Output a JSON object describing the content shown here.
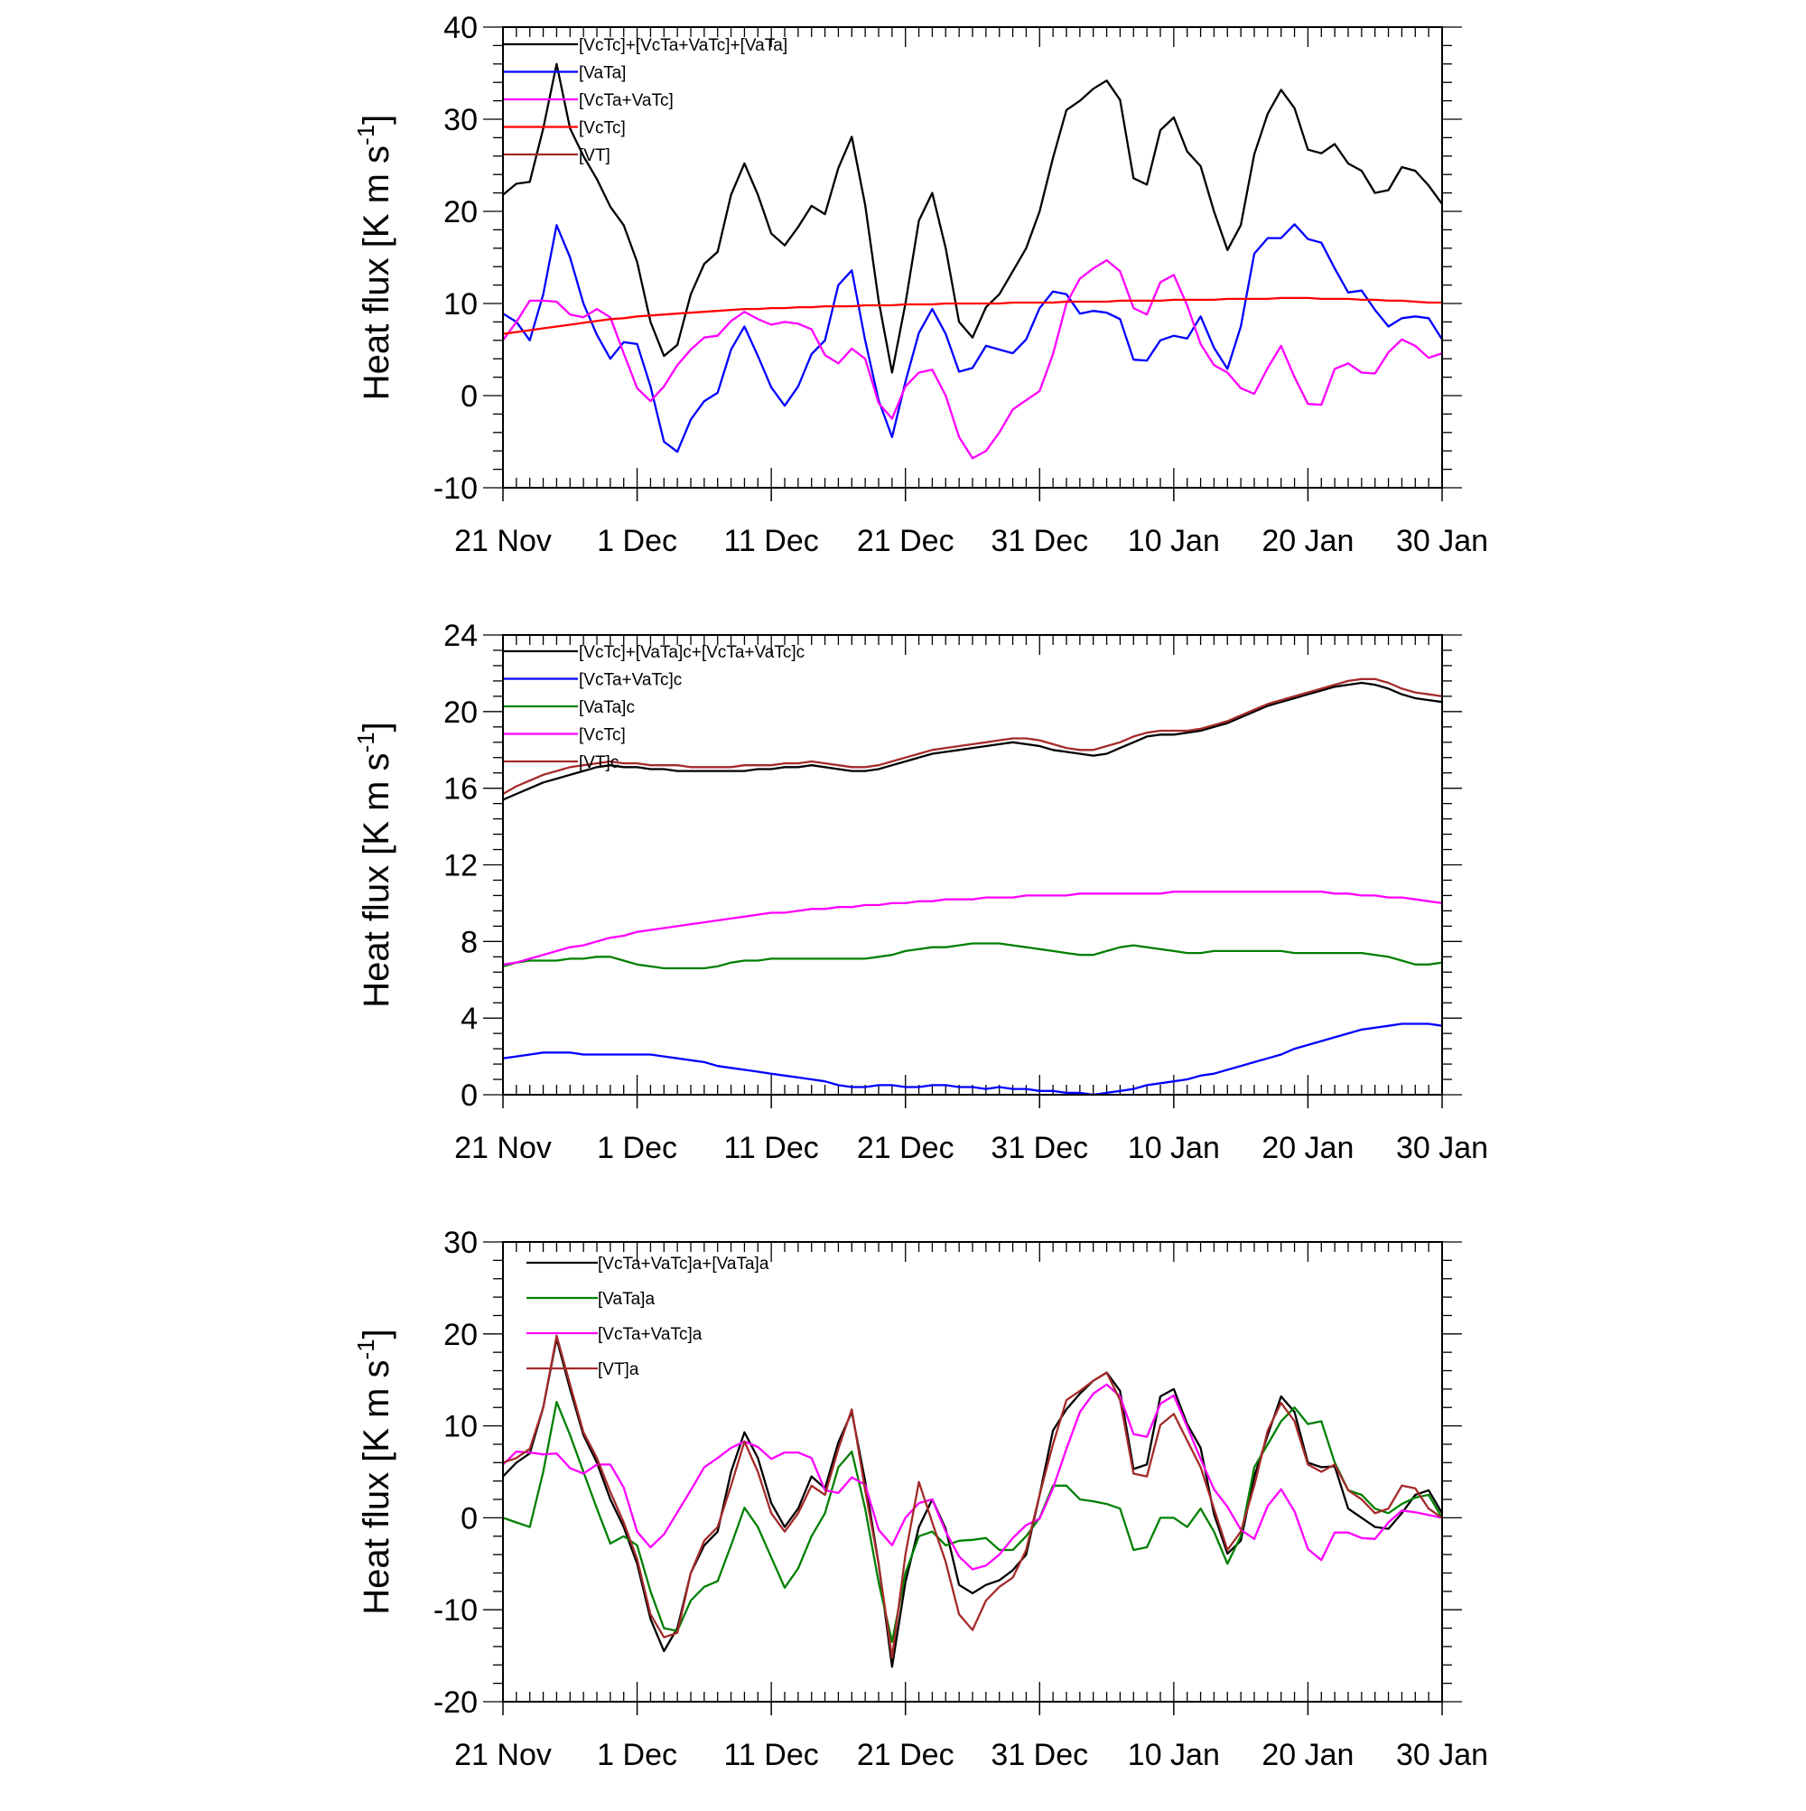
{
  "x_tick_labels": [
    "21 Nov",
    "1 Dec",
    "11 Dec",
    "21 Dec",
    "31 Dec",
    "10 Jan",
    "20 Jan",
    "30 Jan"
  ],
  "chart_data": [
    {
      "type": "line",
      "ylabel": "Heat flux [K m s⁻¹]",
      "ylabel_base": "Heat flux [K m s",
      "ylabel_sup": "-1",
      "ylabel_tail": "]",
      "ylim": [
        -10,
        40
      ],
      "yticks": [
        -10,
        0,
        10,
        20,
        30,
        40
      ],
      "xlim": [
        0,
        70
      ],
      "x_ticks": [
        0,
        10,
        20,
        30,
        40,
        50,
        60,
        70
      ],
      "legend_placement": "top-left",
      "series": [
        {
          "name": "[VcTc]+[VcTa+VaTc]+[VaTa]",
          "color": "#000000",
          "values": [
            21.8,
            23,
            23.2,
            29,
            36,
            29,
            26,
            23.5,
            20.5,
            18.5,
            14.5,
            8,
            4.3,
            5.5,
            11,
            14.3,
            15.6,
            21.8,
            25.2,
            21.8,
            17.6,
            16.3,
            18.3,
            20.6,
            19.7,
            24.7,
            28.1,
            20.7,
            10.3,
            2.5,
            10,
            19,
            22,
            16,
            8,
            6.3,
            9.6,
            11,
            13.5,
            16,
            20,
            25.8,
            31,
            32,
            33.3,
            34.2,
            32.1,
            23.6,
            22.9,
            28.8,
            30.2,
            26.5,
            24.9,
            20,
            15.8,
            18.5,
            26.2,
            30.6,
            33.2,
            31.2,
            26.7,
            26.3,
            27.3,
            25.2,
            24.4,
            22,
            22.3,
            24.8,
            24.4,
            22.8,
            20.8
          ]
        },
        {
          "name": "[VaTa]",
          "color": "#0000ff",
          "values": [
            8.9,
            8,
            6,
            11,
            18.5,
            15,
            10,
            6.6,
            4,
            5.8,
            5.6,
            1,
            -5,
            -6.1,
            -2.6,
            -0.6,
            0.3,
            5,
            7.5,
            4.3,
            0.9,
            -1.1,
            1,
            4.5,
            6,
            12,
            13.6,
            6,
            -0.5,
            -4.5,
            1.5,
            6.8,
            9.4,
            6.7,
            2.6,
            3,
            5.4,
            5,
            4.6,
            6.1,
            9.5,
            11.3,
            11,
            8.9,
            9.2,
            9,
            8.3,
            3.9,
            3.8,
            6,
            6.5,
            6.2,
            8.6,
            5.2,
            2.9,
            7.5,
            15.4,
            17.1,
            17.1,
            18.6,
            17,
            16.6,
            13.8,
            11.2,
            11.4,
            9.3,
            7.5,
            8.4,
            8.6,
            8.4,
            6.1
          ]
        },
        {
          "name": "[VcTa+VaTc]",
          "color": "#ff00ff",
          "values": [
            6,
            8,
            10.3,
            10.3,
            10.2,
            8.8,
            8.5,
            9.4,
            8.5,
            4.6,
            0.8,
            -0.6,
            1,
            3.3,
            5,
            6.3,
            6.5,
            8.1,
            9.1,
            8.3,
            7.7,
            8,
            7.8,
            7.2,
            4.4,
            3.5,
            5.1,
            4,
            -0.8,
            -2.5,
            1,
            2.5,
            2.8,
            0,
            -4.5,
            -6.8,
            -6,
            -4,
            -1.5,
            -0.5,
            0.5,
            4.5,
            10,
            12.7,
            13.8,
            14.7,
            13.5,
            9.5,
            8.8,
            12.3,
            13.1,
            9.8,
            5.6,
            3.3,
            2.5,
            0.8,
            0.2,
            3,
            5.4,
            2,
            -0.9,
            -1,
            2.9,
            3.5,
            2.5,
            2.4,
            4.7,
            6.1,
            5.4,
            4.1,
            4.6
          ]
        },
        {
          "name": "[VcTc]",
          "color": "#ff0000",
          "values": [
            6.7,
            6.9,
            7.1,
            7.3,
            7.5,
            7.7,
            7.9,
            8.1,
            8.3,
            8.4,
            8.6,
            8.7,
            8.8,
            8.9,
            9,
            9.1,
            9.2,
            9.3,
            9.4,
            9.4,
            9.5,
            9.5,
            9.6,
            9.6,
            9.7,
            9.7,
            9.7,
            9.8,
            9.8,
            9.8,
            9.9,
            9.9,
            9.9,
            10,
            10,
            10,
            10,
            10,
            10.1,
            10.1,
            10.1,
            10.1,
            10.2,
            10.2,
            10.2,
            10.2,
            10.3,
            10.3,
            10.3,
            10.3,
            10.4,
            10.4,
            10.4,
            10.4,
            10.5,
            10.5,
            10.5,
            10.5,
            10.6,
            10.6,
            10.6,
            10.5,
            10.5,
            10.5,
            10.4,
            10.4,
            10.3,
            10.3,
            10.2,
            10.1,
            10.1
          ]
        },
        {
          "name": "[VT]",
          "color": "#a52a2a",
          "values": []
        }
      ]
    },
    {
      "type": "line",
      "ylabel": "Heat flux [K m s⁻¹]",
      "ylabel_base": "Heat flux [K m s",
      "ylabel_sup": "-1",
      "ylabel_tail": "]",
      "ylim": [
        0,
        24
      ],
      "yticks": [
        0,
        4,
        8,
        12,
        16,
        20,
        24
      ],
      "xlim": [
        0,
        70
      ],
      "x_ticks": [
        0,
        10,
        20,
        30,
        40,
        50,
        60,
        70
      ],
      "legend_placement": "top-left",
      "series": [
        {
          "name": "[VcTc]+[VaTa]c+[VcTa+VaTc]c",
          "color": "#000000",
          "values": [
            15.4,
            15.7,
            16,
            16.3,
            16.5,
            16.7,
            16.9,
            17.1,
            17.2,
            17.1,
            17.1,
            17,
            17,
            16.9,
            16.9,
            16.9,
            16.9,
            16.9,
            16.9,
            17,
            17,
            17.1,
            17.1,
            17.2,
            17.1,
            17,
            16.9,
            16.9,
            17,
            17.2,
            17.4,
            17.6,
            17.8,
            17.9,
            18,
            18.1,
            18.2,
            18.3,
            18.4,
            18.3,
            18.2,
            18,
            17.9,
            17.8,
            17.7,
            17.8,
            18.1,
            18.4,
            18.7,
            18.8,
            18.8,
            18.9,
            19,
            19.2,
            19.4,
            19.7,
            20,
            20.3,
            20.5,
            20.7,
            20.9,
            21.1,
            21.3,
            21.4,
            21.5,
            21.4,
            21.2,
            20.9,
            20.7,
            20.6,
            20.5
          ]
        },
        {
          "name": "[VcTa+VaTc]c",
          "color": "#0000ff",
          "values": [
            1.9,
            2,
            2.1,
            2.2,
            2.2,
            2.2,
            2.1,
            2.1,
            2.1,
            2.1,
            2.1,
            2.1,
            2,
            1.9,
            1.8,
            1.7,
            1.5,
            1.4,
            1.3,
            1.2,
            1.1,
            1,
            0.9,
            0.8,
            0.7,
            0.5,
            0.4,
            0.4,
            0.5,
            0.5,
            0.4,
            0.4,
            0.5,
            0.5,
            0.4,
            0.4,
            0.3,
            0.4,
            0.3,
            0.3,
            0.2,
            0.2,
            0.1,
            0.1,
            0,
            0.1,
            0.2,
            0.3,
            0.5,
            0.6,
            0.7,
            0.8,
            1,
            1.1,
            1.3,
            1.5,
            1.7,
            1.9,
            2.1,
            2.4,
            2.6,
            2.8,
            3,
            3.2,
            3.4,
            3.5,
            3.6,
            3.7,
            3.7,
            3.7,
            3.6
          ]
        },
        {
          "name": "[VaTa]c",
          "color": "#008000",
          "values": [
            6.7,
            6.9,
            7,
            7,
            7,
            7.1,
            7.1,
            7.2,
            7.2,
            7,
            6.8,
            6.7,
            6.6,
            6.6,
            6.6,
            6.6,
            6.7,
            6.9,
            7,
            7,
            7.1,
            7.1,
            7.1,
            7.1,
            7.1,
            7.1,
            7.1,
            7.1,
            7.2,
            7.3,
            7.5,
            7.6,
            7.7,
            7.7,
            7.8,
            7.9,
            7.9,
            7.9,
            7.8,
            7.7,
            7.6,
            7.5,
            7.4,
            7.3,
            7.3,
            7.5,
            7.7,
            7.8,
            7.7,
            7.6,
            7.5,
            7.4,
            7.4,
            7.5,
            7.5,
            7.5,
            7.5,
            7.5,
            7.5,
            7.4,
            7.4,
            7.4,
            7.4,
            7.4,
            7.4,
            7.3,
            7.2,
            7,
            6.8,
            6.8,
            6.9
          ]
        },
        {
          "name": "[VcTc]",
          "color": "#ff00ff",
          "values": [
            6.8,
            6.9,
            7.1,
            7.3,
            7.5,
            7.7,
            7.8,
            8,
            8.2,
            8.3,
            8.5,
            8.6,
            8.7,
            8.8,
            8.9,
            9,
            9.1,
            9.2,
            9.3,
            9.4,
            9.5,
            9.5,
            9.6,
            9.7,
            9.7,
            9.8,
            9.8,
            9.9,
            9.9,
            10,
            10,
            10.1,
            10.1,
            10.2,
            10.2,
            10.2,
            10.3,
            10.3,
            10.3,
            10.4,
            10.4,
            10.4,
            10.4,
            10.5,
            10.5,
            10.5,
            10.5,
            10.5,
            10.5,
            10.5,
            10.6,
            10.6,
            10.6,
            10.6,
            10.6,
            10.6,
            10.6,
            10.6,
            10.6,
            10.6,
            10.6,
            10.6,
            10.5,
            10.5,
            10.4,
            10.4,
            10.3,
            10.3,
            10.2,
            10.1,
            10
          ]
        },
        {
          "name": "[VT]c",
          "color": "#a52a2a",
          "values": [
            15.7,
            16.1,
            16.4,
            16.7,
            16.9,
            17.1,
            17.2,
            17.3,
            17.4,
            17.3,
            17.3,
            17.2,
            17.2,
            17.2,
            17.1,
            17.1,
            17.1,
            17.1,
            17.2,
            17.2,
            17.2,
            17.3,
            17.3,
            17.4,
            17.3,
            17.2,
            17.1,
            17.1,
            17.2,
            17.4,
            17.6,
            17.8,
            18,
            18.1,
            18.2,
            18.3,
            18.4,
            18.5,
            18.6,
            18.6,
            18.5,
            18.3,
            18.1,
            18,
            18,
            18.2,
            18.4,
            18.7,
            18.9,
            19,
            19,
            19,
            19.1,
            19.3,
            19.5,
            19.8,
            20.1,
            20.4,
            20.6,
            20.8,
            21,
            21.2,
            21.4,
            21.6,
            21.7,
            21.7,
            21.5,
            21.2,
            21,
            20.9,
            20.8
          ]
        }
      ]
    },
    {
      "type": "line",
      "ylabel": "Heat flux [K m s⁻¹]",
      "ylabel_base": "Heat flux [K m s",
      "ylabel_sup": "-1",
      "ylabel_tail": "]",
      "ylim": [
        -20,
        30
      ],
      "yticks": [
        -20,
        -10,
        0,
        10,
        20,
        30
      ],
      "xlim": [
        0,
        70
      ],
      "x_ticks": [
        0,
        10,
        20,
        30,
        40,
        50,
        60,
        70
      ],
      "legend_placement": "top-left",
      "series": [
        {
          "name": "[VcTa+VaTc]a+[VaTa]a",
          "color": "#000000",
          "values": [
            4.5,
            6,
            7,
            12,
            19.5,
            14,
            9,
            6,
            2,
            -1,
            -5,
            -11,
            -14.5,
            -12,
            -6,
            -3,
            -1.5,
            5,
            9.3,
            6.5,
            1.6,
            -1,
            1,
            4.5,
            3.2,
            8.2,
            11.5,
            4,
            -5,
            -16.2,
            -7,
            -1,
            2,
            -1.2,
            -7.3,
            -8.2,
            -7.3,
            -6.8,
            -5.7,
            -4,
            2.5,
            9.5,
            11.8,
            13.5,
            14.9,
            15.8,
            13.8,
            5.3,
            5.8,
            13.2,
            14,
            10.2,
            7.6,
            0.4,
            -3.9,
            -2.5,
            4.5,
            9,
            13.2,
            11.5,
            6,
            5.5,
            5.6,
            1,
            0,
            -1,
            -1.2,
            0.5,
            2.5,
            3,
            0.5
          ]
        },
        {
          "name": "[VaTa]a",
          "color": "#008000",
          "values": [
            0,
            -0.5,
            -1,
            5,
            12.6,
            9,
            5,
            1,
            -2.8,
            -2,
            -3,
            -8,
            -12,
            -12.3,
            -9,
            -7.5,
            -6.9,
            -3,
            1.1,
            -1,
            -4.3,
            -7.6,
            -5.5,
            -2,
            0.5,
            5.5,
            7.2,
            1,
            -7,
            -13.5,
            -6,
            -2,
            -1.5,
            -3,
            -2.5,
            -2.4,
            -2.2,
            -3.5,
            -3.5,
            -2,
            0,
            3.5,
            3.5,
            2,
            1.8,
            1.5,
            1,
            -3.5,
            -3.2,
            0,
            0,
            -1,
            1,
            -1.5,
            -5,
            -2,
            5.5,
            8,
            10.5,
            12,
            10.2,
            10.5,
            6,
            3,
            2.5,
            1,
            0.5,
            1.5,
            2.2,
            2.5,
            0
          ]
        },
        {
          "name": "[VcTa+VaTc]a",
          "color": "#ff00ff",
          "values": [
            5.8,
            7.2,
            7.1,
            6.9,
            7,
            5.4,
            4.8,
            5.8,
            5.8,
            3.3,
            -1.5,
            -3.2,
            -1.8,
            0.6,
            3,
            5.5,
            6.5,
            7.6,
            8.3,
            7.7,
            6.4,
            7.1,
            7.1,
            6.5,
            3,
            2.7,
            4.4,
            3.6,
            -1.3,
            -3,
            0,
            1.6,
            2,
            -1.5,
            -4.2,
            -5.6,
            -5.2,
            -4,
            -2.2,
            -0.8,
            -0.1,
            3.2,
            7.5,
            11.5,
            13.5,
            14.5,
            13.2,
            9.1,
            8.8,
            12.4,
            13.3,
            9.9,
            6.4,
            3.1,
            1.2,
            -1.3,
            -2.3,
            1.3,
            3.1,
            0.7,
            -3.4,
            -4.6,
            -1.6,
            -1.6,
            -2.2,
            -2.3,
            -0.5,
            0.8,
            0.6,
            0.3,
            0
          ]
        },
        {
          "name": "[VT]a",
          "color": "#a52a2a",
          "values": [
            6,
            6.5,
            7.5,
            12,
            19.8,
            14.5,
            9.3,
            6.5,
            2.8,
            -0.5,
            -4.5,
            -10.5,
            -13,
            -12.5,
            -6,
            -2.5,
            -1,
            3.5,
            8.3,
            5,
            0.5,
            -1.5,
            0.5,
            3.5,
            2.5,
            7.5,
            11.8,
            3,
            -5,
            -15.2,
            -4,
            3.9,
            -0.5,
            -4.8,
            -10.5,
            -12.2,
            -9,
            -7.5,
            -6.5,
            -3.5,
            2.5,
            8,
            12.8,
            13.8,
            14.9,
            15.8,
            12.8,
            4.8,
            4.5,
            10.1,
            11.3,
            8.4,
            5.5,
            1,
            -3.5,
            -1.5,
            3.5,
            9.5,
            12.5,
            10.5,
            5.8,
            5,
            5.8,
            3,
            2,
            0.5,
            1,
            3.5,
            3.2,
            1,
            0
          ]
        }
      ]
    }
  ]
}
